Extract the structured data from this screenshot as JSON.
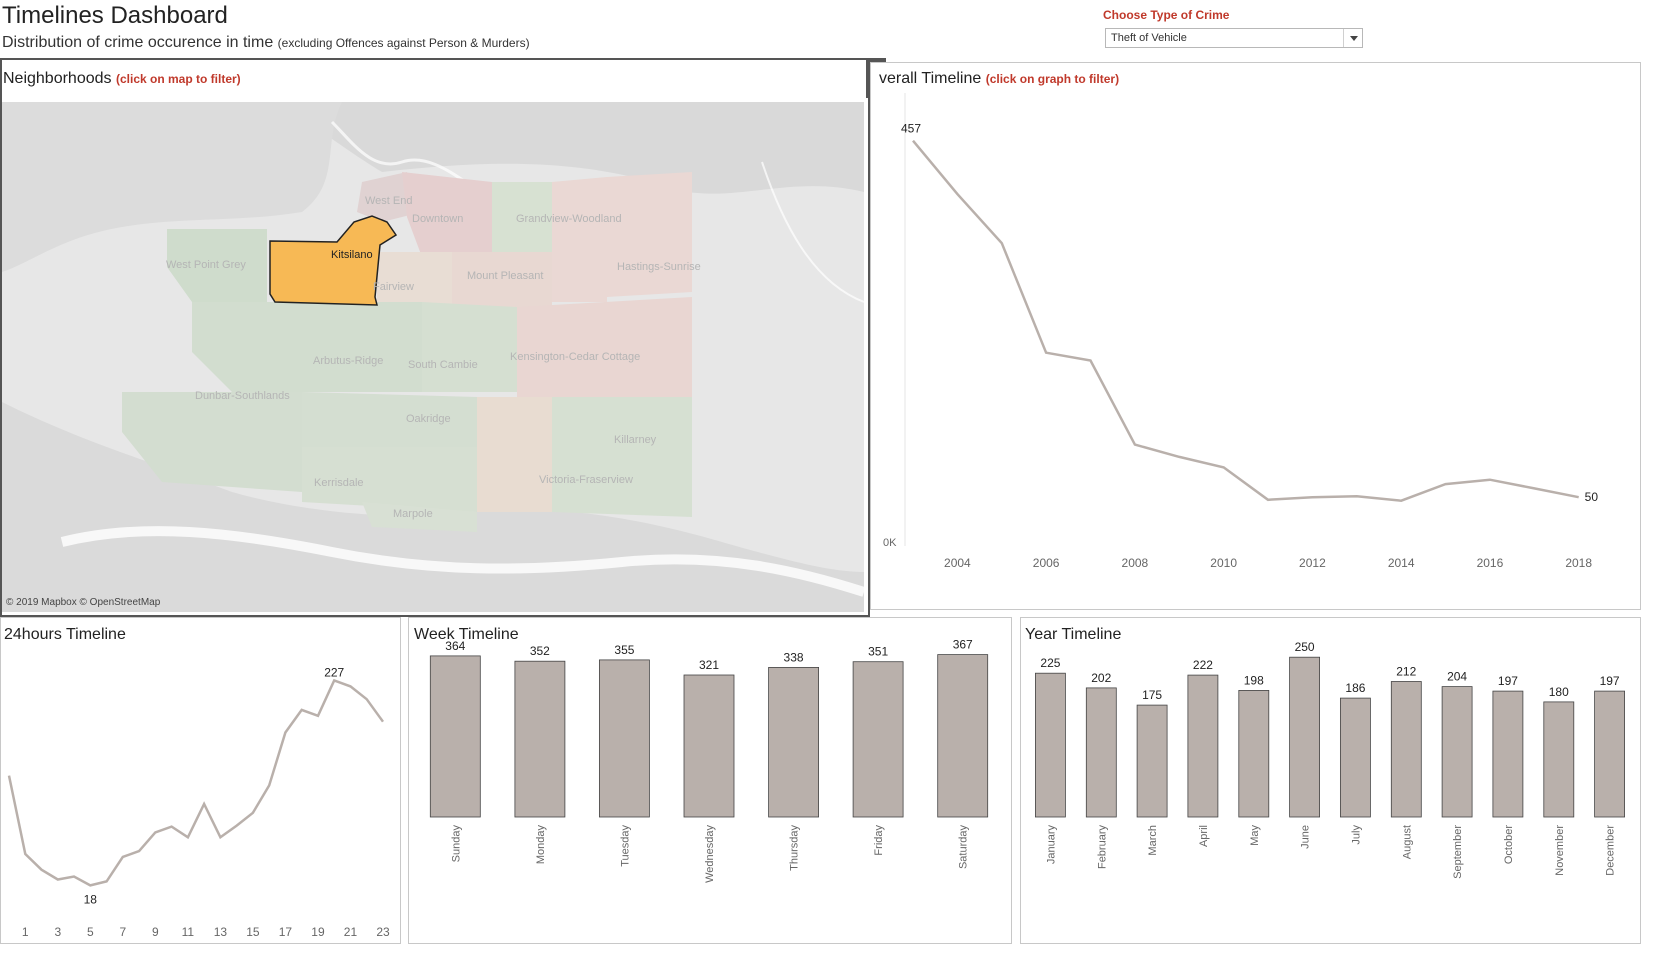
{
  "header": {
    "title": "Timelines Dashboard",
    "subtitle": "Distribution of crime occurence in time",
    "subtitle_note": "(excluding Offences against Person & Murders)"
  },
  "crime_filter": {
    "label": "Choose Type of Crime",
    "selected": "Theft of Vehicle"
  },
  "map_panel": {
    "title": "Neighborhoods",
    "hint": "(click on map to filter)",
    "attribution": "© 2019 Mapbox © OpenStreetMap",
    "selected_neighborhood": "Kitsilano",
    "neighborhood_labels": [
      "West End",
      "Downtown",
      "Grandview-Woodland",
      "West Point Grey",
      "Kitsilano",
      "Fairview",
      "Mount Pleasant",
      "Hastings-Sunrise",
      "Arbutus-Ridge",
      "South Cambie",
      "Kensington-Cedar Cottage",
      "Dunbar-Southlands",
      "Oakridge",
      "Killarney",
      "Kerrisdale",
      "Victoria-Fraserview",
      "Marpole"
    ],
    "tools": {
      "filter_icon": "funnel-icon",
      "menu_icon": "chevron-down-icon"
    }
  },
  "overall_panel": {
    "title": "verall Timeline",
    "hint": "(click on graph to filter)"
  },
  "h24_panel": {
    "title": "24hours Timeline"
  },
  "week_panel": {
    "title": "Week Timeline"
  },
  "year_panel": {
    "title": "Year Timeline"
  },
  "colors": {
    "bar": "#b9b0ab",
    "line": "#b9b0ab",
    "highlight": "#f7b955",
    "accent_red": "#c0392b"
  },
  "chart_data": [
    {
      "id": "overall",
      "type": "line",
      "x": [
        2003,
        2004,
        2005,
        2006,
        2007,
        2008,
        2009,
        2010,
        2011,
        2012,
        2013,
        2014,
        2015,
        2016,
        2017,
        2018
      ],
      "values": [
        457,
        396,
        340,
        215,
        206,
        110,
        96,
        84,
        47,
        50,
        51,
        46,
        65,
        70,
        60,
        50
      ],
      "xticks": [
        "2004",
        "2006",
        "2008",
        "2010",
        "2012",
        "2014",
        "2016",
        "2018"
      ],
      "ytick_label": "0K",
      "ylim": [
        0,
        500
      ],
      "data_labels": {
        "first": "457",
        "last": "50"
      }
    },
    {
      "id": "hours",
      "type": "line",
      "x": [
        0,
        1,
        2,
        3,
        4,
        5,
        6,
        7,
        8,
        9,
        10,
        11,
        12,
        13,
        14,
        15,
        16,
        17,
        18,
        19,
        20,
        21,
        22,
        23
      ],
      "values": [
        130,
        50,
        34,
        24,
        27,
        18,
        22,
        47,
        53,
        72,
        78,
        67,
        101,
        67,
        79,
        92,
        120,
        174,
        197,
        191,
        227,
        221,
        208,
        185
      ],
      "xticks": [
        "1",
        "3",
        "5",
        "7",
        "9",
        "11",
        "13",
        "15",
        "17",
        "19",
        "21",
        "23"
      ],
      "ylim": [
        0,
        250
      ],
      "data_labels": {
        "min": "18",
        "max": "227"
      }
    },
    {
      "id": "week",
      "type": "bar",
      "categories": [
        "Sunday",
        "Monday",
        "Tuesday",
        "Wednesday",
        "Thursday",
        "Friday",
        "Saturday"
      ],
      "values": [
        364,
        352,
        355,
        321,
        338,
        351,
        367
      ],
      "ylim": [
        0,
        400
      ]
    },
    {
      "id": "year",
      "type": "bar",
      "categories": [
        "January",
        "February",
        "March",
        "April",
        "May",
        "June",
        "July",
        "August",
        "September",
        "October",
        "November",
        "December"
      ],
      "values": [
        225,
        202,
        175,
        222,
        198,
        250,
        186,
        212,
        204,
        197,
        180,
        197
      ],
      "ylim": [
        0,
        280
      ]
    }
  ]
}
